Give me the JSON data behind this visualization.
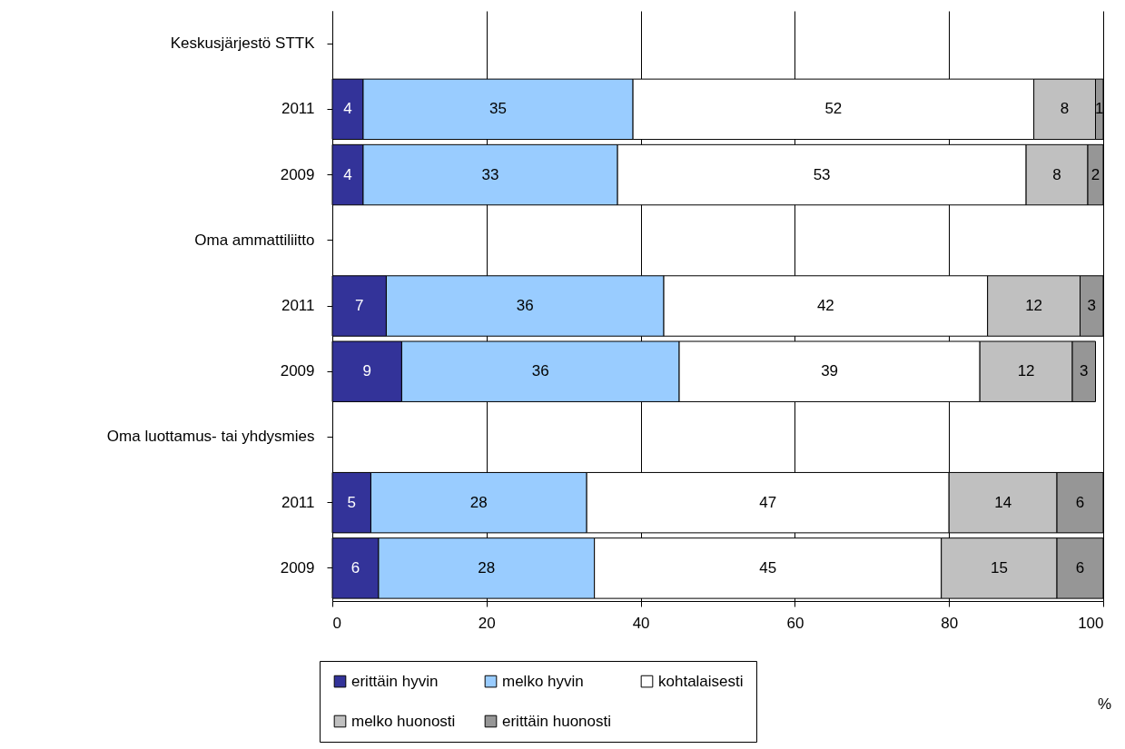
{
  "chart_data": {
    "type": "bar",
    "orientation": "horizontal",
    "stacked": true,
    "data_labels": true,
    "xlabel": "%",
    "xlim": [
      0,
      100
    ],
    "xticks": [
      0,
      20,
      40,
      60,
      80,
      100
    ],
    "grid": "x",
    "legend": "bottom",
    "categories": [
      "Keskusjärjestö STTK",
      "2011",
      "2009",
      "Oma ammattiliitto",
      "2011",
      "2009",
      "Oma luottamus- tai yhdysmies",
      "2011",
      "2009"
    ],
    "series": [
      {
        "name": "erittäin hyvin",
        "color": "#333399",
        "values": [
          null,
          4,
          4,
          null,
          7,
          9,
          null,
          5,
          6
        ]
      },
      {
        "name": "melko hyvin",
        "color": "#99ccff",
        "values": [
          null,
          35,
          33,
          null,
          36,
          36,
          null,
          28,
          28
        ]
      },
      {
        "name": "kohtalaisesti",
        "color": "#ffffff",
        "values": [
          null,
          52,
          53,
          null,
          42,
          39,
          null,
          47,
          45
        ]
      },
      {
        "name": "melko huonosti",
        "color": "#c0c0c0",
        "values": [
          null,
          8,
          8,
          null,
          12,
          12,
          null,
          14,
          15
        ]
      },
      {
        "name": "erittäin huonosti",
        "color": "#969696",
        "values": [
          null,
          1,
          2,
          null,
          3,
          3,
          null,
          6,
          6
        ]
      }
    ]
  }
}
